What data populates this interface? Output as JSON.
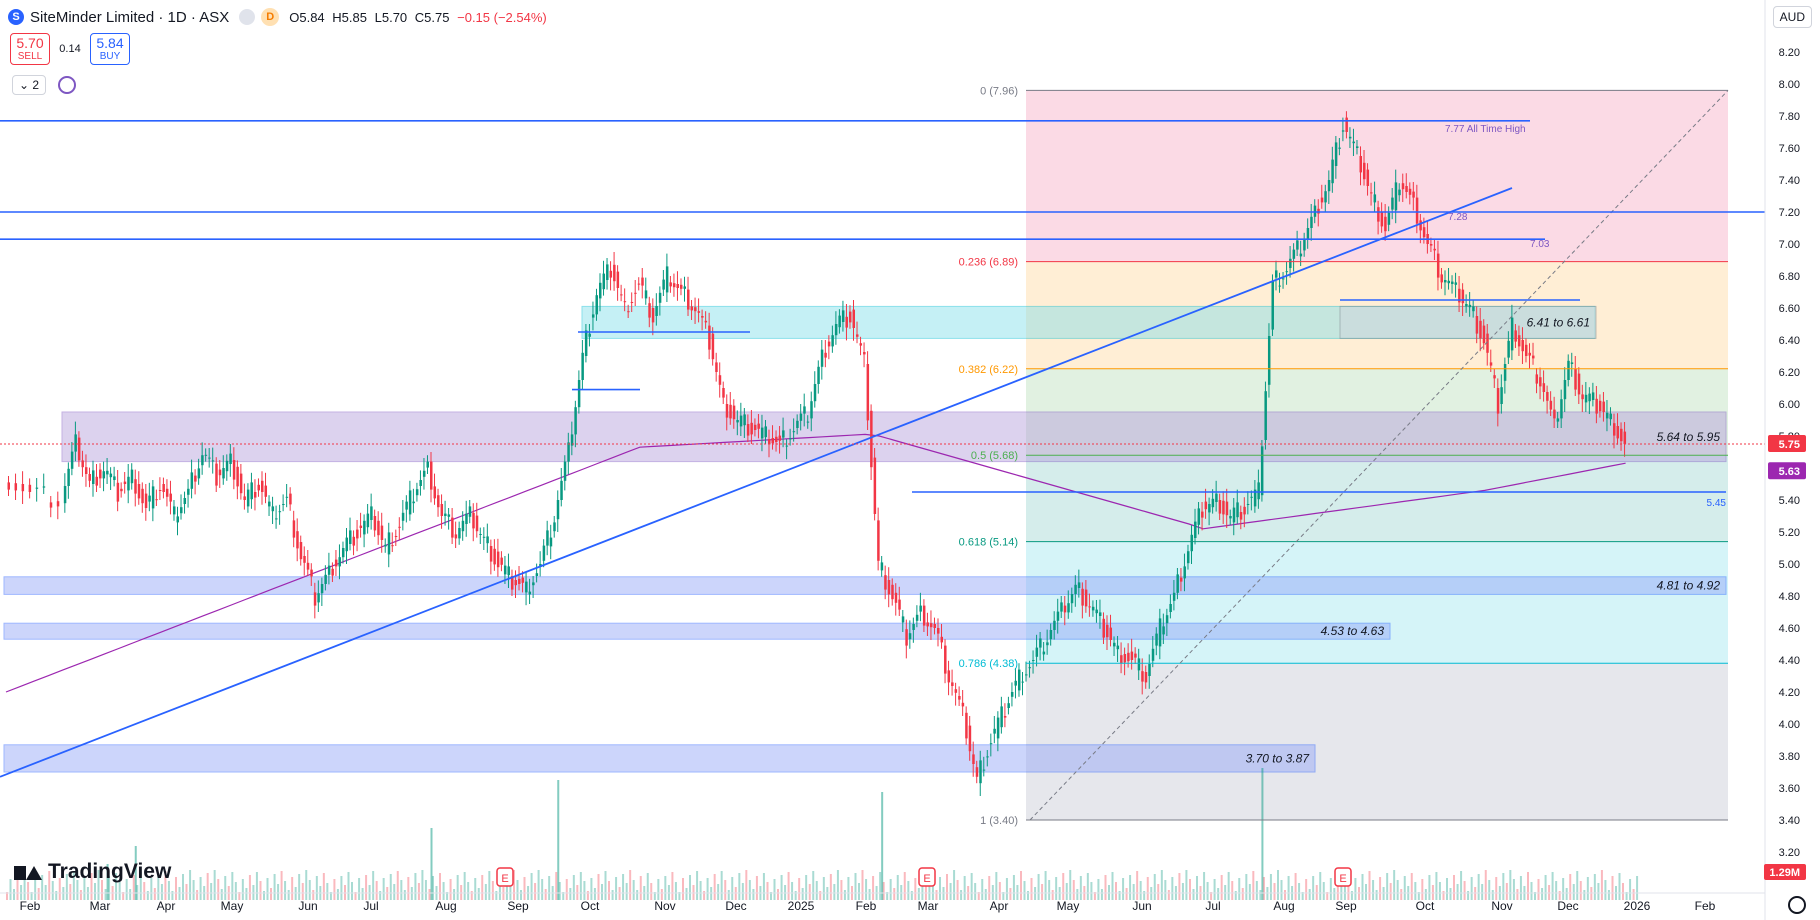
{
  "header": {
    "symbol_title": "SiteMinder Limited · 1D · ASX",
    "logo_letter": "S",
    "interval_badge": "D",
    "ohlc": {
      "o": "O5.84",
      "h": "H5.85",
      "l": "L5.70",
      "c": "C5.75",
      "change": "−0.15 (−2.54%)"
    }
  },
  "trade": {
    "sell_price": "5.70",
    "sell_label": "SELL",
    "spread": "0.14",
    "buy_price": "5.84",
    "buy_label": "BUY"
  },
  "layers_count": "2",
  "currency": "AUD",
  "branding": "TradingView",
  "colors": {
    "up": "#089981",
    "down": "#f23645",
    "line": "#2962ff",
    "ma": "#9c27b0",
    "purple_zone": "#7e57c2"
  },
  "chart_data": {
    "type": "candlestick",
    "title": "SiteMinder Limited · 1D · ASX",
    "y_axis": {
      "min": 3.2,
      "max": 8.3,
      "position": "right",
      "ticks": [
        "8.20",
        "8.00",
        "7.80",
        "7.60",
        "7.40",
        "7.20",
        "7.00",
        "6.80",
        "6.60",
        "6.40",
        "6.20",
        "6.00",
        "5.80",
        "5.60",
        "5.40",
        "5.20",
        "5.00",
        "4.80",
        "4.60",
        "4.40",
        "4.20",
        "4.00",
        "3.80",
        "3.60",
        "3.40",
        "3.20"
      ]
    },
    "x_axis": {
      "ticks": [
        "Feb",
        "Mar",
        "Apr",
        "May",
        "Jun",
        "Jul",
        "Aug",
        "Sep",
        "Oct",
        "Nov",
        "Dec",
        "2025",
        "Feb",
        "Mar",
        "Apr",
        "May",
        "Jun",
        "Jul",
        "Aug",
        "Sep",
        "Oct",
        "Nov",
        "Dec",
        "2026",
        "Feb"
      ]
    },
    "price_path": [
      [
        0,
        5.55
      ],
      [
        2,
        5.45
      ],
      [
        4,
        5.4
      ],
      [
        5,
        5.75
      ],
      [
        6,
        5.5
      ],
      [
        7,
        5.6
      ],
      [
        8,
        5.45
      ],
      [
        9,
        5.55
      ],
      [
        10,
        5.35
      ],
      [
        11,
        5.5
      ],
      [
        12,
        5.3
      ],
      [
        13,
        5.45
      ],
      [
        14,
        5.7
      ],
      [
        15,
        5.55
      ],
      [
        16,
        5.65
      ],
      [
        17,
        5.4
      ],
      [
        18,
        5.5
      ],
      [
        19,
        5.3
      ],
      [
        20,
        5.4
      ],
      [
        21,
        5.05
      ],
      [
        22,
        4.8
      ],
      [
        23,
        4.95
      ],
      [
        24,
        5.1
      ],
      [
        25,
        5.2
      ],
      [
        26,
        5.3
      ],
      [
        27,
        5.1
      ],
      [
        28,
        5.25
      ],
      [
        29,
        5.45
      ],
      [
        30,
        5.6
      ],
      [
        31,
        5.3
      ],
      [
        32,
        5.2
      ],
      [
        33,
        5.3
      ],
      [
        34,
        5.15
      ],
      [
        35,
        5.0
      ],
      [
        36,
        4.9
      ],
      [
        37,
        4.85
      ],
      [
        38,
        5.0
      ],
      [
        39,
        5.3
      ],
      [
        40,
        5.7
      ],
      [
        41,
        6.3
      ],
      [
        42,
        6.7
      ],
      [
        43,
        6.85
      ],
      [
        44,
        6.6
      ],
      [
        45,
        6.75
      ],
      [
        46,
        6.55
      ],
      [
        47,
        6.8
      ],
      [
        48,
        6.7
      ],
      [
        49,
        6.6
      ],
      [
        50,
        6.4
      ],
      [
        51,
        6.0
      ],
      [
        52,
        5.9
      ],
      [
        53,
        5.85
      ],
      [
        54,
        5.8
      ],
      [
        55,
        5.75
      ],
      [
        56,
        5.85
      ],
      [
        57,
        5.95
      ],
      [
        58,
        6.3
      ],
      [
        59,
        6.5
      ],
      [
        60,
        6.55
      ],
      [
        61,
        6.25
      ],
      [
        62,
        5.0
      ],
      [
        63,
        4.8
      ],
      [
        64,
        4.55
      ],
      [
        65,
        4.7
      ],
      [
        66,
        4.6
      ],
      [
        67,
        4.3
      ],
      [
        68,
        4.05
      ],
      [
        69,
        3.65
      ],
      [
        70,
        3.9
      ],
      [
        71,
        4.1
      ],
      [
        72,
        4.3
      ],
      [
        73,
        4.4
      ],
      [
        74,
        4.55
      ],
      [
        75,
        4.7
      ],
      [
        76,
        4.85
      ],
      [
        77,
        4.75
      ],
      [
        78,
        4.6
      ],
      [
        79,
        4.45
      ],
      [
        80,
        4.4
      ],
      [
        81,
        4.3
      ],
      [
        82,
        4.6
      ],
      [
        83,
        4.8
      ],
      [
        84,
        5.1
      ],
      [
        85,
        5.35
      ],
      [
        86,
        5.4
      ],
      [
        87,
        5.3
      ],
      [
        88,
        5.35
      ],
      [
        89,
        5.45
      ],
      [
        90,
        6.75
      ],
      [
        91,
        6.85
      ],
      [
        92,
        7.0
      ],
      [
        93,
        7.2
      ],
      [
        94,
        7.4
      ],
      [
        95,
        7.75
      ],
      [
        96,
        7.55
      ],
      [
        97,
        7.3
      ],
      [
        98,
        7.1
      ],
      [
        99,
        7.4
      ],
      [
        100,
        7.25
      ],
      [
        101,
        7.0
      ],
      [
        102,
        6.8
      ],
      [
        103,
        6.7
      ],
      [
        104,
        6.6
      ],
      [
        105,
        6.4
      ],
      [
        106,
        6.0
      ],
      [
        107,
        6.5
      ],
      [
        108,
        6.3
      ],
      [
        109,
        6.15
      ],
      [
        110,
        5.85
      ],
      [
        111,
        6.25
      ],
      [
        112,
        6.05
      ],
      [
        113,
        6.0
      ],
      [
        114,
        5.9
      ],
      [
        115,
        5.75
      ]
    ],
    "volume_spikes": [
      [
        39,
        1.0
      ],
      [
        30,
        0.6
      ],
      [
        62,
        0.9
      ],
      [
        89,
        1.1
      ],
      [
        9,
        0.45
      ],
      [
        7,
        0.3
      ]
    ],
    "horizontal_levels": [
      {
        "price": 7.77,
        "label": "7.77 All Time High"
      },
      {
        "price": 7.2,
        "label": ""
      },
      {
        "price": 7.03,
        "label": ""
      },
      {
        "price": 5.45,
        "label": "5.45"
      },
      {
        "price": 6.65,
        "label": ""
      }
    ],
    "zones": [
      {
        "from": 5.64,
        "to": 5.95,
        "label": "5.64 to 5.95"
      },
      {
        "from": 4.81,
        "to": 4.92,
        "label": "4.81 to 4.92"
      },
      {
        "from": 4.53,
        "to": 4.63,
        "label": "4.53 to 4.63"
      },
      {
        "from": 3.7,
        "to": 3.87,
        "label": "3.70 to 3.87"
      },
      {
        "from": 6.41,
        "to": 6.61,
        "label": ""
      },
      {
        "from": 6.41,
        "to": 6.61,
        "label": "6.41 to 6.61"
      }
    ],
    "fibonacci": [
      {
        "level": "0",
        "price": 7.96,
        "label": "0 (7.96)"
      },
      {
        "level": "0.236",
        "price": 6.89,
        "label": "0.236 (6.89)"
      },
      {
        "level": "0.382",
        "price": 6.22,
        "label": "0.382 (6.22)"
      },
      {
        "level": "0.5",
        "price": 5.68,
        "label": "0.5 (5.68)"
      },
      {
        "level": "0.618",
        "price": 5.14,
        "label": "0.618 (5.14)"
      },
      {
        "level": "0.786",
        "price": 4.38,
        "label": "0.786 (4.38)"
      },
      {
        "level": "1",
        "price": 3.4,
        "label": "1 (3.40)"
      }
    ],
    "annotations": [
      "7.28",
      "7.03"
    ],
    "price_labels": {
      "last": "5.75",
      "ma": "5.63",
      "volume": "1.29M"
    },
    "earnings_markers": [
      "E",
      "E",
      "E"
    ]
  }
}
